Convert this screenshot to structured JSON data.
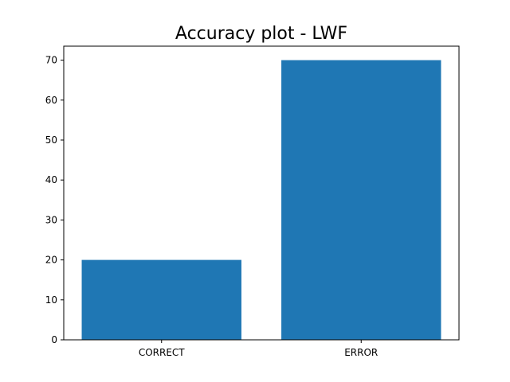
{
  "chart_data": {
    "type": "bar",
    "title": "Accuracy plot - LWF",
    "xlabel": "",
    "ylabel": "",
    "categories": [
      "CORRECT",
      "ERROR"
    ],
    "values": [
      20,
      70
    ],
    "ylim": [
      0,
      73.5
    ],
    "yticks": [
      0,
      10,
      20,
      30,
      40,
      50,
      60,
      70
    ],
    "bar_color": "#1f77b4",
    "grid": false,
    "legend": "none"
  }
}
